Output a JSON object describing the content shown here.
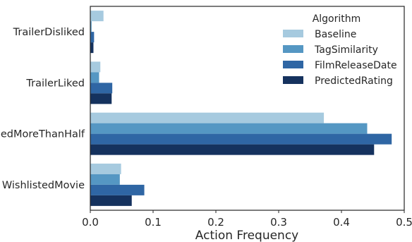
{
  "chart_data": {
    "type": "bar",
    "orientation": "horizontal",
    "categories": [
      "TrailerDisliked",
      "TrailerLiked",
      "WatchedMoreThanHalf",
      "WishlistedMovie"
    ],
    "visible_category_labels": [
      "TrailerDisliked",
      "TrailerLiked",
      "hedMoreThanHalf",
      "WishlistedMovie"
    ],
    "series": [
      {
        "name": "Baseline",
        "color": "#a6cadf",
        "values": [
          0.021,
          0.016,
          0.372,
          0.049
        ]
      },
      {
        "name": "TagSimilarity",
        "color": "#5597c3",
        "values": [
          0.002,
          0.014,
          0.441,
          0.047
        ]
      },
      {
        "name": "FilmReleaseDate",
        "color": "#2f66a4",
        "values": [
          0.006,
          0.035,
          0.48,
          0.086
        ]
      },
      {
        "name": "PredictedRating",
        "color": "#15325e",
        "values": [
          0.005,
          0.034,
          0.452,
          0.066
        ]
      }
    ],
    "xlabel": "Action Frequency",
    "ylabel": "",
    "xlim": [
      0.0,
      0.5
    ],
    "xticks": [
      "0.0",
      "0.1",
      "0.2",
      "0.3",
      "0.4",
      "0.5"
    ],
    "grid": false,
    "legend": {
      "title": "Algorithm",
      "position": "top-right"
    }
  }
}
